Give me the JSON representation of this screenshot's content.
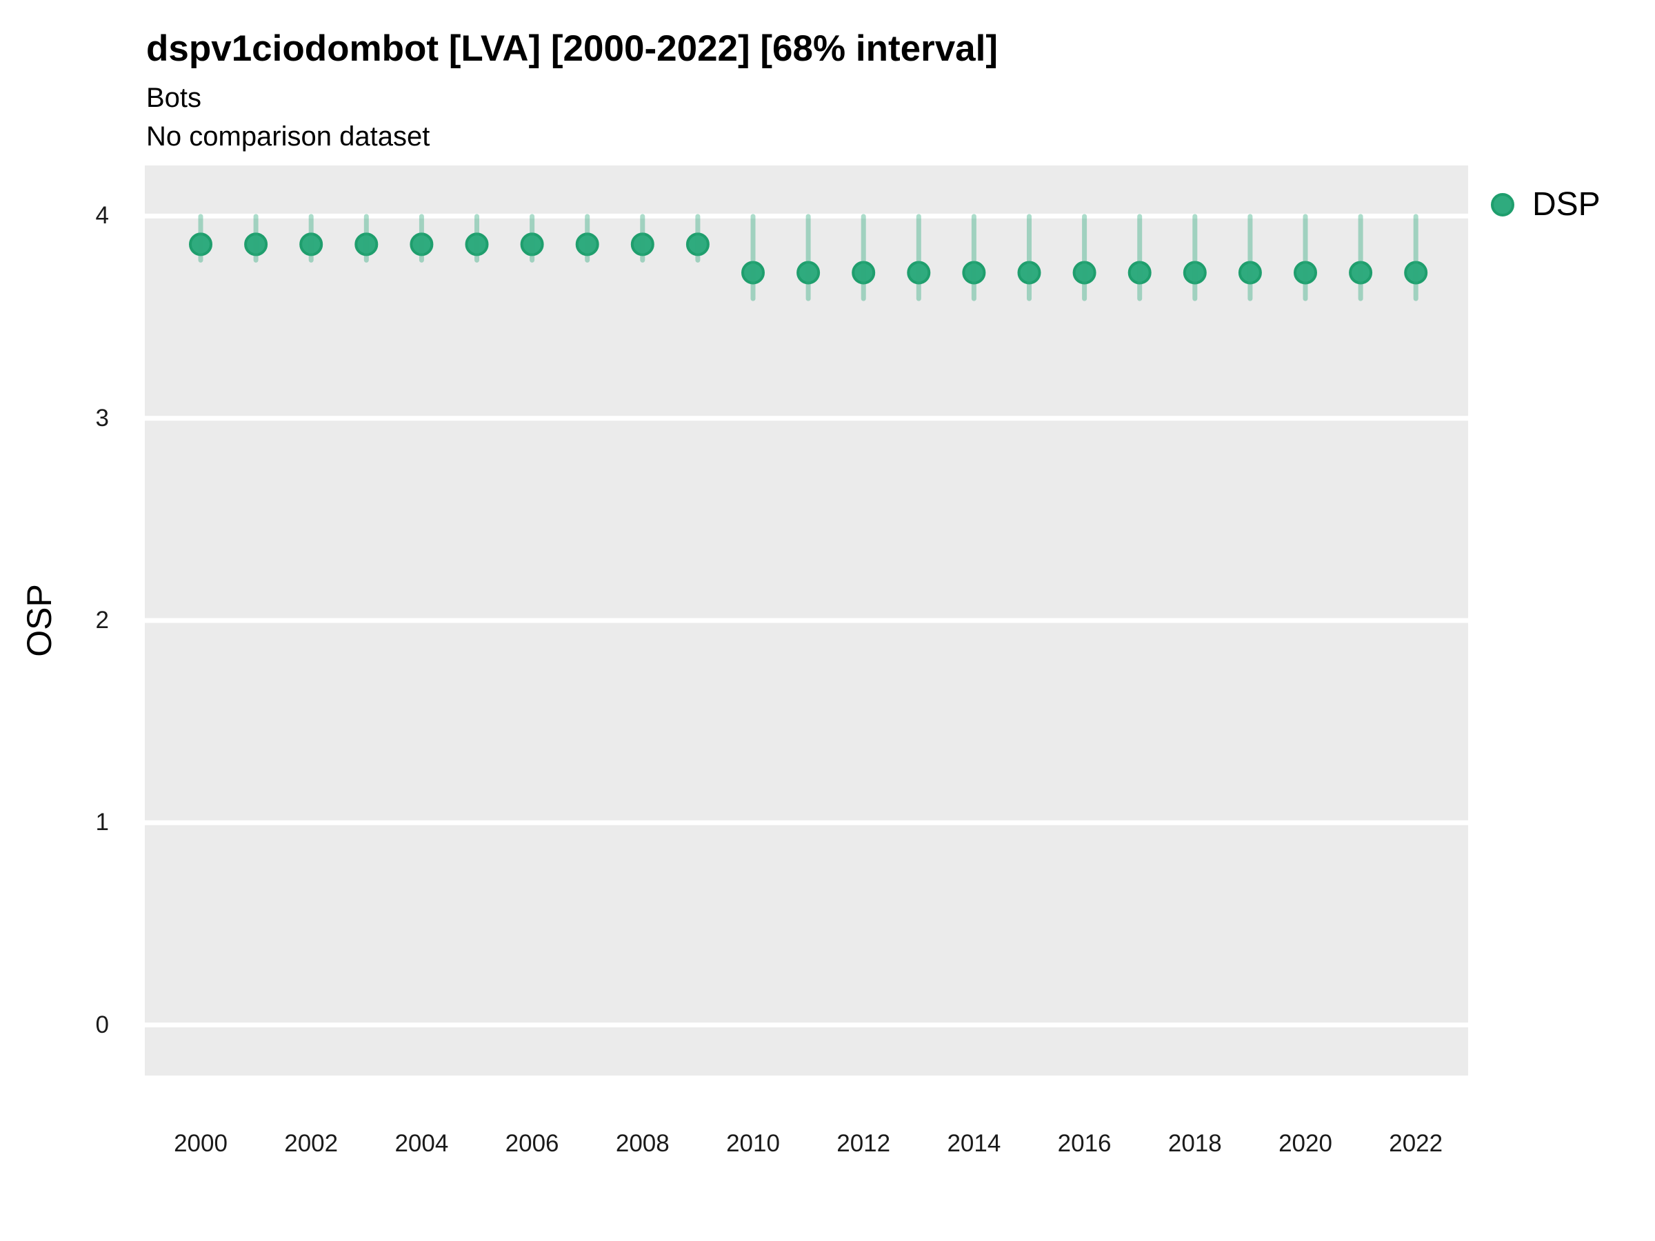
{
  "header": {
    "title": "dspv1ciodombot [LVA] [2000-2022] [68% interval]",
    "subtitle": "Bots",
    "comparison_note": "No comparison dataset"
  },
  "legend": {
    "series_label": "DSP"
  },
  "chart_data": {
    "type": "scatter",
    "title": "dspv1ciodombot [LVA] [2000-2022] [68% interval]",
    "subtitle": "Bots",
    "note": "No comparison dataset",
    "interval": "68%",
    "xlabel": "",
    "ylabel": "OSP",
    "legend_position": "right",
    "grid": "horizontal-major-only",
    "ylim": [
      0,
      4
    ],
    "y_domain": [
      -0.25,
      4.25
    ],
    "yticks": [
      0,
      1,
      2,
      3,
      4
    ],
    "xticks": [
      2000,
      2002,
      2004,
      2006,
      2008,
      2010,
      2012,
      2014,
      2016,
      2018,
      2020,
      2022
    ],
    "series": [
      {
        "name": "DSP",
        "points": [
          {
            "year": 2000,
            "value": 3.86,
            "lo": 3.78,
            "hi": 4.0
          },
          {
            "year": 2001,
            "value": 3.86,
            "lo": 3.78,
            "hi": 4.0
          },
          {
            "year": 2002,
            "value": 3.86,
            "lo": 3.78,
            "hi": 4.0
          },
          {
            "year": 2003,
            "value": 3.86,
            "lo": 3.78,
            "hi": 4.0
          },
          {
            "year": 2004,
            "value": 3.86,
            "lo": 3.78,
            "hi": 4.0
          },
          {
            "year": 2005,
            "value": 3.86,
            "lo": 3.78,
            "hi": 4.0
          },
          {
            "year": 2006,
            "value": 3.86,
            "lo": 3.78,
            "hi": 4.0
          },
          {
            "year": 2007,
            "value": 3.86,
            "lo": 3.78,
            "hi": 4.0
          },
          {
            "year": 2008,
            "value": 3.86,
            "lo": 3.78,
            "hi": 4.0
          },
          {
            "year": 2009,
            "value": 3.86,
            "lo": 3.78,
            "hi": 4.0
          },
          {
            "year": 2010,
            "value": 3.72,
            "lo": 3.59,
            "hi": 4.0
          },
          {
            "year": 2011,
            "value": 3.72,
            "lo": 3.59,
            "hi": 4.0
          },
          {
            "year": 2012,
            "value": 3.72,
            "lo": 3.59,
            "hi": 4.0
          },
          {
            "year": 2013,
            "value": 3.72,
            "lo": 3.59,
            "hi": 4.0
          },
          {
            "year": 2014,
            "value": 3.72,
            "lo": 3.59,
            "hi": 4.0
          },
          {
            "year": 2015,
            "value": 3.72,
            "lo": 3.59,
            "hi": 4.0
          },
          {
            "year": 2016,
            "value": 3.72,
            "lo": 3.59,
            "hi": 4.0
          },
          {
            "year": 2017,
            "value": 3.72,
            "lo": 3.59,
            "hi": 4.0
          },
          {
            "year": 2018,
            "value": 3.72,
            "lo": 3.59,
            "hi": 4.0
          },
          {
            "year": 2019,
            "value": 3.72,
            "lo": 3.59,
            "hi": 4.0
          },
          {
            "year": 2020,
            "value": 3.72,
            "lo": 3.59,
            "hi": 4.0
          },
          {
            "year": 2021,
            "value": 3.72,
            "lo": 3.59,
            "hi": 4.0
          },
          {
            "year": 2022,
            "value": 3.72,
            "lo": 3.59,
            "hi": 4.0
          }
        ]
      }
    ],
    "colors": {
      "point_fill": "#2fab7e",
      "point_stroke": "#1f9e6d",
      "interval_bar": "rgba(47,171,126,0.40)",
      "panel_bg": "#ebebeb",
      "gridline": "#ffffff",
      "tick_text": "#1a1a1a"
    }
  }
}
